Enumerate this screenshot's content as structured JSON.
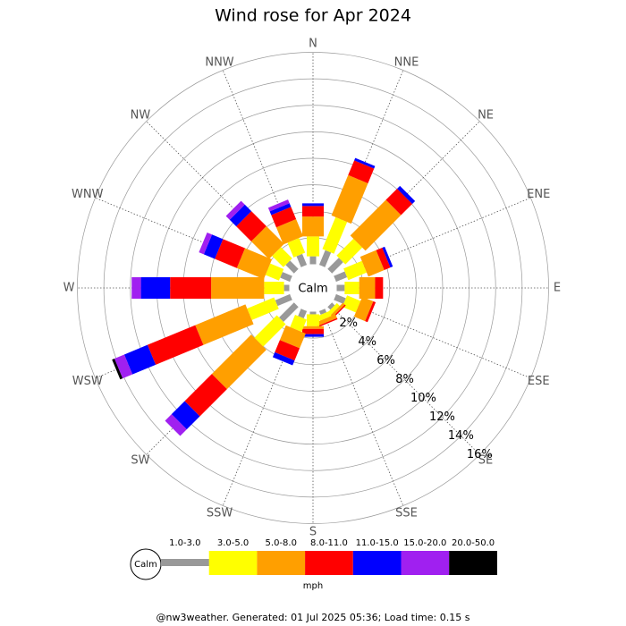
{
  "chart_data": {
    "type": "windrose",
    "title": "Wind rose for Apr 2024",
    "categories": [
      "N",
      "NNE",
      "NE",
      "ENE",
      "E",
      "ESE",
      "SE",
      "SSE",
      "S",
      "SSW",
      "SW",
      "WSW",
      "W",
      "WNW",
      "NW",
      "NNW"
    ],
    "series": [
      {
        "name": "1.0-3.0",
        "color": "#999999",
        "values": [
          0.6,
          1.2,
          1.2,
          0.9,
          0.6,
          0.8,
          0.3,
          0.3,
          0.2,
          0.6,
          1.6,
          1.2,
          0.4,
          0.8,
          0.9,
          0.9
        ]
      },
      {
        "name": "3.0-5.0",
        "color": "#ffff00",
        "values": [
          1.5,
          2.6,
          1.8,
          1.5,
          1.1,
          1.1,
          0.3,
          0.4,
          0.9,
          1.0,
          2.4,
          2.2,
          1.5,
          1.1,
          1.2,
          1.2
        ]
      },
      {
        "name": "5.0-8.0",
        "color": "#ff9f00",
        "values": [
          1.5,
          3.3,
          3.8,
          1.3,
          1.2,
          0.9,
          0.2,
          0.3,
          0.2,
          1.2,
          4.2,
          4.1,
          4.0,
          2.2,
          1.9,
          1.4
        ]
      },
      {
        "name": "8.0-11.0",
        "color": "#ff0000",
        "values": [
          0.8,
          1.2,
          1.2,
          0.5,
          0.6,
          0.2,
          0.1,
          0.1,
          0.4,
          1.0,
          2.9,
          3.9,
          3.1,
          1.8,
          1.6,
          1.0
        ]
      },
      {
        "name": "11.0-15.0",
        "color": "#0000ff",
        "values": [
          0.2,
          0.2,
          0.3,
          0.2,
          0,
          0,
          0,
          0,
          0.2,
          0.4,
          1.4,
          1.9,
          2.2,
          0.9,
          0.7,
          0.3
        ]
      },
      {
        "name": "15.0-20.0",
        "color": "#a020f0",
        "values": [
          0,
          0,
          0,
          0,
          0,
          0,
          0,
          0,
          0,
          0,
          0.7,
          0.8,
          0.7,
          0.4,
          0.4,
          0.3
        ]
      },
      {
        "name": "20.0-50.0",
        "color": "#000000",
        "values": [
          0,
          0,
          0,
          0,
          0,
          0,
          0,
          0,
          0,
          0,
          0,
          0.2,
          0,
          0,
          0,
          0
        ]
      }
    ],
    "ylim": [
      0,
      16
    ],
    "yticks": [
      {
        "value": 2,
        "label": "2%"
      },
      {
        "value": 4,
        "label": "4%"
      },
      {
        "value": 6,
        "label": "6%"
      },
      {
        "value": 8,
        "label": "8%"
      },
      {
        "value": 10,
        "label": "10%"
      },
      {
        "value": 12,
        "label": "12%"
      },
      {
        "value": 14,
        "label": "14%"
      },
      {
        "value": 16,
        "label": "16%"
      }
    ],
    "calm_label": "Calm",
    "legend_unit": "mph",
    "footer": "@nw3weather. Generated: 01 Jul 2025 05:36; Load time: 0.15 s"
  }
}
